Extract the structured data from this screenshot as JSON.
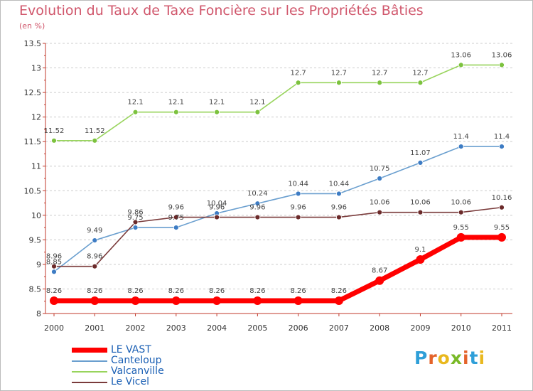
{
  "header": {
    "title": "Evolution du Taux de Taxe Foncière sur les Propriétés Bâties",
    "subtitle": "(en %)"
  },
  "colors": {
    "title": "#d0566b",
    "legend_text": "#1a5fb4",
    "grid": "#cccccc"
  },
  "logo": {
    "letters": [
      "P",
      "r",
      "o",
      "x",
      "i",
      "t",
      "i"
    ],
    "colors": [
      "#2f9fd8",
      "#e4632a",
      "#e9b81e",
      "#79b927",
      "#e4632a",
      "#2f9fd8",
      "#e9b81e"
    ]
  },
  "chart_data": {
    "type": "line",
    "categories": [
      "2000",
      "2001",
      "2002",
      "2003",
      "2004",
      "2005",
      "2006",
      "2007",
      "2008",
      "2009",
      "2010",
      "2011"
    ],
    "ylim": [
      8,
      13.5
    ],
    "yticks": [
      "8",
      "8.5",
      "9",
      "9.5",
      "10",
      "10.5",
      "11",
      "11.5",
      "12",
      "12.5",
      "13",
      "13.5"
    ],
    "grid": "horizontal dashed",
    "legend_position": "bottom-left",
    "series": [
      {
        "name": "LE VAST",
        "color": "#ff0000",
        "point_color": "#ff0000",
        "thick": true,
        "values": [
          8.26,
          8.26,
          8.26,
          8.26,
          8.26,
          8.26,
          8.26,
          8.26,
          8.67,
          9.1,
          9.55,
          9.55
        ],
        "labels": [
          "8.26",
          "8.26",
          "8.26",
          "8.26",
          "8.26",
          "8.26",
          "8.26",
          "8.26",
          "8.67",
          "9.1",
          "9.55",
          "9.55"
        ]
      },
      {
        "name": "Canteloup",
        "color": "#6a9fcf",
        "point_color": "#3d7cc4",
        "thick": false,
        "values": [
          8.85,
          9.49,
          9.75,
          9.75,
          10.04,
          10.24,
          10.44,
          10.44,
          10.75,
          11.07,
          11.4,
          11.4
        ],
        "labels": [
          "8.85",
          "9.49",
          "9.75",
          "9.75",
          "10.04",
          "10.24",
          "10.44",
          "10.44",
          "10.75",
          "11.07",
          "11.4",
          "11.4"
        ]
      },
      {
        "name": "Valcanville",
        "color": "#98d45c",
        "point_color": "#7cc23e",
        "thick": false,
        "values": [
          11.52,
          11.52,
          12.1,
          12.1,
          12.1,
          12.1,
          12.7,
          12.7,
          12.7,
          12.7,
          13.06,
          13.06
        ],
        "labels": [
          "11.52",
          "11.52",
          "12.1",
          "12.1",
          "12.1",
          "12.1",
          "12.7",
          "12.7",
          "12.7",
          "12.7",
          "13.06",
          "13.06"
        ]
      },
      {
        "name": "Le Vicel",
        "color": "#7a3b3b",
        "point_color": "#6b2a2a",
        "thick": false,
        "values": [
          8.96,
          8.96,
          9.86,
          9.96,
          9.96,
          9.96,
          9.96,
          9.96,
          10.06,
          10.06,
          10.06,
          10.16
        ],
        "labels": [
          "8.96",
          "8.96",
          "9.86",
          "9.96",
          "9.96",
          "9.96",
          "9.96",
          "9.96",
          "10.06",
          "10.06",
          "10.06",
          "10.16"
        ]
      }
    ]
  }
}
